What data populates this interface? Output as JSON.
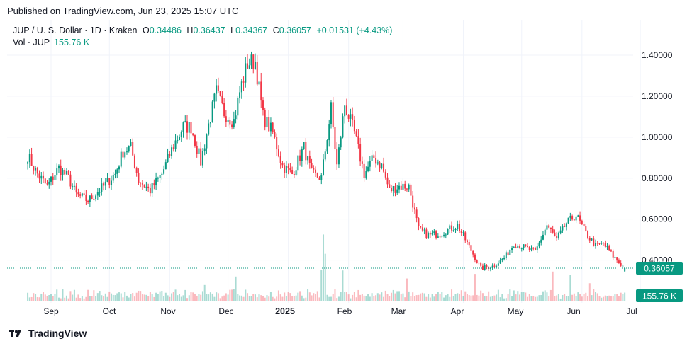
{
  "header": {
    "published": "Published on TradingView.com, Jun 23, 2025 15:07 UTC"
  },
  "legend": {
    "symbol": "JUP / U. S. Dollar · 1D · Kraken",
    "o_label": "O",
    "o_value": "0.34486",
    "h_label": "H",
    "h_value": "0.36437",
    "l_label": "L",
    "l_value": "0.34367",
    "c_label": "C",
    "c_value": "0.36057",
    "change": "+0.01531 (+4.43%)",
    "vol_label": "Vol · JUP",
    "vol_value": "155.76 K"
  },
  "brand": {
    "name": "TradingView"
  },
  "colors": {
    "up": "#089981",
    "down": "#f23645",
    "grid": "#f0f3fa",
    "text": "#131722"
  },
  "chart_data": {
    "type": "candlestick",
    "y_ticks": [
      "1.40000",
      "1.20000",
      "1.00000",
      "0.80000",
      "0.60000",
      "0.40000"
    ],
    "ylim": [
      0.3,
      1.45
    ],
    "x_ticks": [
      "Sep",
      "Oct",
      "Nov",
      "Dec",
      "2025",
      "Feb",
      "Mar",
      "Apr",
      "May",
      "Jun",
      "Jul"
    ],
    "last_price": "0.36057",
    "last_volume": "155.76 K",
    "anchors": [
      [
        "2024-08-20",
        0.91
      ],
      [
        "2024-08-25",
        0.82
      ],
      [
        "2024-08-30",
        0.76
      ],
      [
        "2024-09-05",
        0.85
      ],
      [
        "2024-09-10",
        0.8
      ],
      [
        "2024-09-14",
        0.72
      ],
      [
        "2024-09-20",
        0.69
      ],
      [
        "2024-09-28",
        0.76
      ],
      [
        "2024-10-04",
        0.82
      ],
      [
        "2024-10-08",
        0.93
      ],
      [
        "2024-10-12",
        0.95
      ],
      [
        "2024-10-16",
        0.79
      ],
      [
        "2024-10-22",
        0.74
      ],
      [
        "2024-10-28",
        0.82
      ],
      [
        "2024-11-03",
        0.96
      ],
      [
        "2024-11-08",
        1.05
      ],
      [
        "2024-11-12",
        1.05
      ],
      [
        "2024-11-17",
        0.88
      ],
      [
        "2024-11-21",
        1.06
      ],
      [
        "2024-11-25",
        1.22
      ],
      [
        "2024-11-29",
        1.12
      ],
      [
        "2024-12-04",
        1.08
      ],
      [
        "2024-12-07",
        1.22
      ],
      [
        "2024-12-11",
        1.36
      ],
      [
        "2024-12-15",
        1.37
      ],
      [
        "2024-12-19",
        1.1
      ],
      [
        "2024-12-24",
        1.02
      ],
      [
        "2024-12-29",
        0.86
      ],
      [
        "2025-01-03",
        0.82
      ],
      [
        "2025-01-09",
        0.95
      ],
      [
        "2025-01-13",
        0.82
      ],
      [
        "2025-01-18",
        0.8
      ],
      [
        "2025-01-23",
        1.14
      ],
      [
        "2025-01-26",
        0.86
      ],
      [
        "2025-01-30",
        1.16
      ],
      [
        "2025-02-04",
        1.02
      ],
      [
        "2025-02-09",
        0.82
      ],
      [
        "2025-02-14",
        0.9
      ],
      [
        "2025-02-18",
        0.86
      ],
      [
        "2025-02-22",
        0.74
      ],
      [
        "2025-02-27",
        0.76
      ],
      [
        "2025-03-04",
        0.76
      ],
      [
        "2025-03-09",
        0.55
      ],
      [
        "2025-03-14",
        0.52
      ],
      [
        "2025-03-20",
        0.53
      ],
      [
        "2025-03-29",
        0.57
      ],
      [
        "2025-04-06",
        0.43
      ],
      [
        "2025-04-10",
        0.36
      ],
      [
        "2025-04-16",
        0.37
      ],
      [
        "2025-04-22",
        0.41
      ],
      [
        "2025-04-27",
        0.48
      ],
      [
        "2025-05-03",
        0.46
      ],
      [
        "2025-05-08",
        0.44
      ],
      [
        "2025-05-14",
        0.57
      ],
      [
        "2025-05-19",
        0.5
      ],
      [
        "2025-05-24",
        0.58
      ],
      [
        "2025-05-29",
        0.62
      ],
      [
        "2025-06-03",
        0.53
      ],
      [
        "2025-06-08",
        0.47
      ],
      [
        "2025-06-12",
        0.48
      ],
      [
        "2025-06-17",
        0.42
      ],
      [
        "2025-06-21",
        0.38
      ],
      [
        "2025-06-23",
        0.36057
      ]
    ]
  }
}
